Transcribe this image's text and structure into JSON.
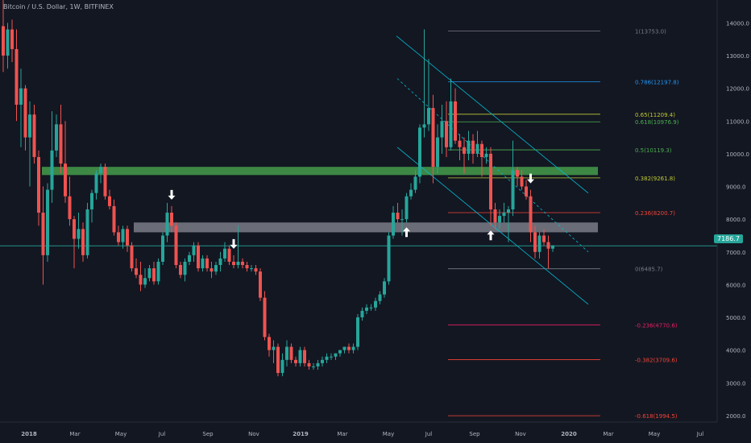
{
  "header": {
    "symbol_line": "Bitcoin / U.S. Dollar, 1W, BITFINEX"
  },
  "colors": {
    "background": "#131722",
    "up": "#26a69a",
    "down": "#ef5350",
    "axis_text": "#b2b5be",
    "current_price_bg": "#26a69a"
  },
  "chart_data": {
    "type": "candlestick",
    "title": "Bitcoin / U.S. Dollar, 1W, BITFINEX",
    "xlabel": "",
    "ylabel": "",
    "ylim": [
      1800,
      14700
    ],
    "x_ticks": [
      "2018",
      "Mar",
      "May",
      "Jul",
      "Sep",
      "Nov",
      "2019",
      "Mar",
      "May",
      "Jul",
      "Sep",
      "Nov",
      "2020",
      "Mar",
      "May",
      "Jul"
    ],
    "y_ticks": [
      2000,
      3000,
      4000,
      5000,
      6000,
      7000,
      8000,
      9000,
      10000,
      11000,
      12000,
      13000,
      14000
    ],
    "current_price": "7186.7",
    "candles": [
      [
        13900,
        14700,
        12500,
        13000
      ],
      [
        13000,
        14000,
        12600,
        13800
      ],
      [
        13800,
        14100,
        12800,
        13200
      ],
      [
        13200,
        13800,
        11000,
        11500
      ],
      [
        11500,
        12600,
        10200,
        12000
      ],
      [
        12000,
        12100,
        10100,
        10500
      ],
      [
        10500,
        11600,
        9000,
        11200
      ],
      [
        11200,
        11500,
        9700,
        9900
      ],
      [
        9900,
        10100,
        7800,
        8200
      ],
      [
        8200,
        9000,
        6000,
        6900
      ],
      [
        6900,
        9100,
        6700,
        8900
      ],
      [
        8900,
        11300,
        8500,
        10100
      ],
      [
        10100,
        11200,
        9900,
        10900
      ],
      [
        10900,
        11500,
        9400,
        9700
      ],
      [
        9700,
        11000,
        8500,
        8700
      ],
      [
        8700,
        9300,
        7800,
        8000
      ],
      [
        8000,
        8100,
        6500,
        7400
      ],
      [
        7400,
        8200,
        7100,
        7700
      ],
      [
        7700,
        7900,
        6700,
        6900
      ],
      [
        6900,
        8500,
        6800,
        8300
      ],
      [
        8300,
        8900,
        7900,
        8800
      ],
      [
        8800,
        9500,
        8600,
        9400
      ],
      [
        9400,
        9700,
        9100,
        9600
      ],
      [
        9600,
        9700,
        8600,
        8700
      ],
      [
        8700,
        8900,
        8300,
        8400
      ],
      [
        8400,
        8600,
        7500,
        7600
      ],
      [
        7600,
        7800,
        7200,
        7300
      ],
      [
        7300,
        7800,
        7100,
        7700
      ],
      [
        7700,
        7800,
        7000,
        7200
      ],
      [
        7200,
        7300,
        6400,
        6500
      ],
      [
        6500,
        6800,
        6200,
        6300
      ],
      [
        6300,
        6700,
        5800,
        6000
      ],
      [
        6000,
        6500,
        5900,
        6200
      ],
      [
        6200,
        6600,
        6100,
        6500
      ],
      [
        6500,
        6700,
        6000,
        6100
      ],
      [
        6100,
        6800,
        6000,
        6700
      ],
      [
        6700,
        7600,
        6600,
        7500
      ],
      [
        7500,
        8500,
        7300,
        8200
      ],
      [
        8200,
        8400,
        7600,
        7800
      ],
      [
        7800,
        7900,
        6500,
        6600
      ],
      [
        6600,
        6700,
        6200,
        6300
      ],
      [
        6300,
        6800,
        6100,
        6700
      ],
      [
        6700,
        7000,
        6600,
        6900
      ],
      [
        6900,
        7300,
        6700,
        7200
      ],
      [
        7200,
        7300,
        6400,
        6500
      ],
      [
        6500,
        6900,
        6400,
        6800
      ],
      [
        6800,
        6900,
        6400,
        6500
      ],
      [
        6500,
        6700,
        6200,
        6400
      ],
      [
        6400,
        6700,
        6300,
        6600
      ],
      [
        6600,
        7000,
        6400,
        6800
      ],
      [
        6800,
        7300,
        6700,
        7100
      ],
      [
        7100,
        7200,
        6600,
        6700
      ],
      [
        6700,
        6900,
        6500,
        6600
      ],
      [
        6600,
        7800,
        6500,
        6700
      ],
      [
        6700,
        6800,
        6500,
        6600
      ],
      [
        6600,
        6700,
        6400,
        6500
      ],
      [
        6500,
        6600,
        6400,
        6500
      ],
      [
        6500,
        6600,
        6300,
        6400
      ],
      [
        6400,
        6500,
        5500,
        5600
      ],
      [
        5600,
        5800,
        4300,
        4400
      ],
      [
        4400,
        4500,
        3800,
        4000
      ],
      [
        4000,
        4300,
        3600,
        4100
      ],
      [
        4100,
        4200,
        3200,
        3300
      ],
      [
        3300,
        3900,
        3200,
        3700
      ],
      [
        3700,
        4300,
        3500,
        4100
      ],
      [
        4100,
        4200,
        3600,
        3700
      ],
      [
        3700,
        3800,
        3500,
        3600
      ],
      [
        3600,
        4100,
        3500,
        4000
      ],
      [
        4000,
        4100,
        3500,
        3600
      ],
      [
        3600,
        3700,
        3400,
        3500
      ],
      [
        3500,
        3600,
        3400,
        3500
      ],
      [
        3500,
        3700,
        3400,
        3600
      ],
      [
        3600,
        3800,
        3500,
        3700
      ],
      [
        3700,
        3900,
        3600,
        3800
      ],
      [
        3800,
        3900,
        3700,
        3800
      ],
      [
        3800,
        3900,
        3700,
        3900
      ],
      [
        3900,
        4000,
        3800,
        4000
      ],
      [
        4000,
        4100,
        3900,
        4100
      ],
      [
        4100,
        4200,
        3900,
        4000
      ],
      [
        4000,
        4200,
        3900,
        4100
      ],
      [
        4100,
        5100,
        4000,
        5000
      ],
      [
        5000,
        5300,
        4900,
        5200
      ],
      [
        5200,
        5400,
        5100,
        5300
      ],
      [
        5300,
        5400,
        5200,
        5300
      ],
      [
        5300,
        5600,
        5200,
        5500
      ],
      [
        5500,
        5800,
        5400,
        5700
      ],
      [
        5700,
        6200,
        5600,
        6100
      ],
      [
        6100,
        7600,
        6000,
        7500
      ],
      [
        7500,
        8400,
        7400,
        8200
      ],
      [
        8200,
        8500,
        7900,
        8000
      ],
      [
        8000,
        8300,
        7500,
        8000
      ],
      [
        8000,
        8800,
        7900,
        8700
      ],
      [
        8700,
        9100,
        8600,
        8900
      ],
      [
        8900,
        9500,
        8800,
        9300
      ],
      [
        9300,
        10900,
        9100,
        10800
      ],
      [
        10800,
        13800,
        10500,
        10900
      ],
      [
        10900,
        12900,
        10700,
        11400
      ],
      [
        11400,
        11800,
        9100,
        9600
      ],
      [
        9600,
        10900,
        9400,
        10500
      ],
      [
        10500,
        11500,
        10000,
        11000
      ],
      [
        11000,
        11600,
        9900,
        10200
      ],
      [
        10200,
        12300,
        10100,
        11600
      ],
      [
        11600,
        12000,
        10300,
        10400
      ],
      [
        10400,
        10600,
        9800,
        10200
      ],
      [
        10200,
        10500,
        9400,
        10000
      ],
      [
        10000,
        10700,
        9800,
        10400
      ],
      [
        10400,
        10600,
        9700,
        10000
      ],
      [
        10000,
        10700,
        9900,
        10300
      ],
      [
        10300,
        10400,
        9300,
        9900
      ],
      [
        9900,
        10200,
        9700,
        10000
      ],
      [
        10000,
        10200,
        7800,
        8300
      ],
      [
        8300,
        8500,
        7700,
        7900
      ],
      [
        7900,
        8300,
        7700,
        8100
      ],
      [
        8100,
        8500,
        7900,
        8200
      ],
      [
        8200,
        8400,
        7300,
        8300
      ],
      [
        8300,
        10400,
        8100,
        9500
      ],
      [
        9500,
        9600,
        9000,
        9300
      ],
      [
        9300,
        9500,
        8900,
        9000
      ],
      [
        9000,
        9200,
        8600,
        8700
      ],
      [
        8700,
        8900,
        7300,
        7600
      ],
      [
        7600,
        7800,
        6800,
        7000
      ],
      [
        7000,
        7600,
        6800,
        7500
      ],
      [
        7500,
        7700,
        7200,
        7300
      ],
      [
        7300,
        7500,
        6500,
        7100
      ],
      [
        7100,
        7200,
        7000,
        7200
      ]
    ],
    "fib_levels": [
      {
        "label": "1(13753.0)",
        "price": 13753,
        "color": "#787b86"
      },
      {
        "label": "0.786(12197.8)",
        "price": 12197.8,
        "color": "#2196f3"
      },
      {
        "label": "0.65(11209.4)",
        "price": 11209.4,
        "color": "#c0ca33"
      },
      {
        "label": "0.618(10976.9)",
        "price": 10976.9,
        "color": "#4caf50"
      },
      {
        "label": "0.5(10119.3)",
        "price": 10119.3,
        "color": "#4caf50"
      },
      {
        "label": "0.382(9261.8)",
        "price": 9261.8,
        "color": "#c0ca33"
      },
      {
        "label": "0.236(8200.7)",
        "price": 8200.7,
        "color": "#f44336"
      },
      {
        "label": "0(6485.7)",
        "price": 6485.7,
        "color": "#787b86"
      },
      {
        "label": "-0.236(4770.6)",
        "price": 4770.6,
        "color": "#e91e63"
      },
      {
        "label": "-0.382(3709.6)",
        "price": 3709.6,
        "color": "#f44336"
      },
      {
        "label": "-0.618(1994.5)",
        "price": 1994.5,
        "color": "#f44336"
      }
    ],
    "zones": [
      {
        "name": "resistance",
        "from": 9350,
        "to": 9600,
        "color": "#4caf50"
      },
      {
        "name": "support",
        "from": 7600,
        "to": 7900,
        "color": "#b2b5be"
      }
    ],
    "arrows": [
      {
        "candle": 38,
        "direction": "down"
      },
      {
        "candle": 52,
        "direction": "down"
      },
      {
        "candle": 91,
        "direction": "up"
      },
      {
        "candle": 110,
        "direction": "up"
      },
      {
        "candle": 119,
        "direction": "down"
      }
    ],
    "channel": {
      "color": "#00bcd4"
    }
  }
}
